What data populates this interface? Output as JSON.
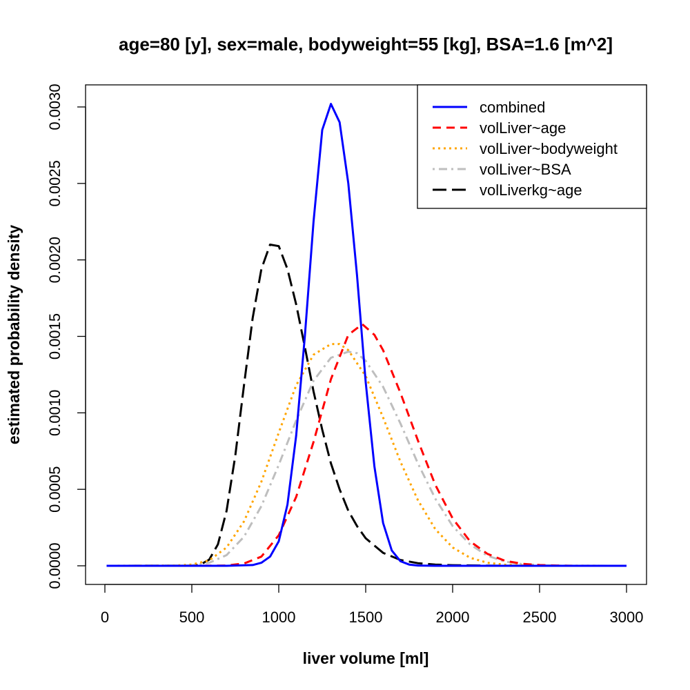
{
  "chart_data": {
    "type": "line",
    "title": "age=80 [y], sex=male, bodyweight=55 [kg], BSA=1.6 [m^2]",
    "xlabel": "liver volume [ml]",
    "ylabel": "estimated probability density",
    "xlim": [
      0,
      3000
    ],
    "ylim": [
      0,
      0.003
    ],
    "x_ticks": [
      0,
      500,
      1000,
      1500,
      2000,
      2500,
      3000
    ],
    "x_tick_labels": [
      "0",
      "500",
      "1000",
      "1500",
      "2000",
      "2500",
      "3000"
    ],
    "y_ticks": [
      0,
      0.0005,
      0.001,
      0.0015,
      0.002,
      0.0025,
      0.003
    ],
    "y_tick_labels": [
      "0.0000",
      "0.0005",
      "0.0010",
      "0.0015",
      "0.0020",
      "0.0025",
      "0.0030"
    ],
    "grid": false,
    "legend_position": "top-right",
    "series": [
      {
        "name": "combined",
        "color": "#0000ff",
        "dash": "solid",
        "x": [
          10,
          700,
          850,
          900,
          950,
          1000,
          1050,
          1100,
          1150,
          1200,
          1250,
          1300,
          1350,
          1400,
          1450,
          1500,
          1550,
          1600,
          1650,
          1700,
          1750,
          1800,
          1900,
          2000,
          2100,
          2500,
          3000
        ],
        "y": [
          0,
          0,
          5e-06,
          2e-05,
          6e-05,
          0.00016,
          0.0004,
          0.00085,
          0.0015,
          0.00225,
          0.00285,
          0.00302,
          0.0029,
          0.0025,
          0.0019,
          0.0012,
          0.00065,
          0.00028,
          0.0001,
          3e-05,
          8e-06,
          2e-06,
          0,
          0,
          0,
          0,
          0
        ]
      },
      {
        "name": "volLiver~age",
        "color": "#ff0000",
        "dash": "dashed",
        "x": [
          10,
          500,
          700,
          800,
          900,
          1000,
          1100,
          1200,
          1300,
          1400,
          1480,
          1550,
          1600,
          1700,
          1800,
          1900,
          2000,
          2100,
          2200,
          2300,
          2400,
          2500,
          2600,
          2700,
          3000
        ],
        "y": [
          0,
          0,
          2e-06,
          1.5e-05,
          6e-05,
          0.0002,
          0.00045,
          0.00081,
          0.00122,
          0.00151,
          0.00158,
          0.00151,
          0.00141,
          0.00113,
          0.00082,
          0.00053,
          0.00031,
          0.00016,
          7.8e-05,
          3.3e-05,
          1.3e-05,
          5e-06,
          2e-06,
          0,
          0
        ]
      },
      {
        "name": "volLiver~bodyweight",
        "color": "#ffa500",
        "dash": "dotted",
        "x": [
          10,
          400,
          500,
          600,
          700,
          800,
          900,
          1000,
          1100,
          1200,
          1300,
          1350,
          1400,
          1500,
          1600,
          1700,
          1800,
          1900,
          2000,
          2100,
          2200,
          2300,
          2500,
          3000
        ],
        "y": [
          0,
          2e-06,
          8e-06,
          3.5e-05,
          0.00012,
          0.00029,
          0.00055,
          0.00087,
          0.00118,
          0.00138,
          0.00145,
          0.00145,
          0.00141,
          0.00124,
          0.00097,
          0.00068,
          0.00043,
          0.00024,
          0.00012,
          5.3e-05,
          2e-05,
          7e-06,
          1e-06,
          0
        ]
      },
      {
        "name": "volLiver~BSA",
        "color": "#bebebe",
        "dash": "dotdash",
        "x": [
          10,
          400,
          500,
          600,
          700,
          800,
          900,
          1000,
          1100,
          1200,
          1300,
          1400,
          1450,
          1500,
          1600,
          1700,
          1800,
          1900,
          2000,
          2100,
          2200,
          2300,
          2400,
          2600,
          3000
        ],
        "y": [
          0,
          1e-06,
          4e-06,
          2e-05,
          7e-05,
          0.00019,
          0.00039,
          0.00066,
          0.00095,
          0.00121,
          0.00136,
          0.0014,
          0.00139,
          0.00134,
          0.00117,
          0.00093,
          0.00067,
          0.00044,
          0.00026,
          0.00014,
          6.6e-05,
          2.8e-05,
          1.1e-05,
          1e-06,
          0
        ]
      },
      {
        "name": "volLiverkg~age",
        "color": "#000000",
        "dash": "longdash",
        "x": [
          10,
          500,
          550,
          600,
          650,
          700,
          750,
          800,
          850,
          900,
          950,
          1000,
          1050,
          1100,
          1150,
          1200,
          1250,
          1300,
          1350,
          1400,
          1450,
          1500,
          1600,
          1700,
          1800,
          1900,
          2000,
          2200,
          2500,
          3000
        ],
        "y": [
          0,
          1e-06,
          8e-06,
          4e-05,
          0.00014,
          0.00036,
          0.00072,
          0.00118,
          0.00162,
          0.00194,
          0.0021,
          0.00209,
          0.00194,
          0.00171,
          0.00143,
          0.00114,
          0.00089,
          0.00067,
          0.0005,
          0.00036,
          0.00026,
          0.00018,
          8.5e-05,
          3.8e-05,
          1.7e-05,
          8e-06,
          4e-06,
          1e-06,
          0,
          0
        ]
      }
    ]
  }
}
